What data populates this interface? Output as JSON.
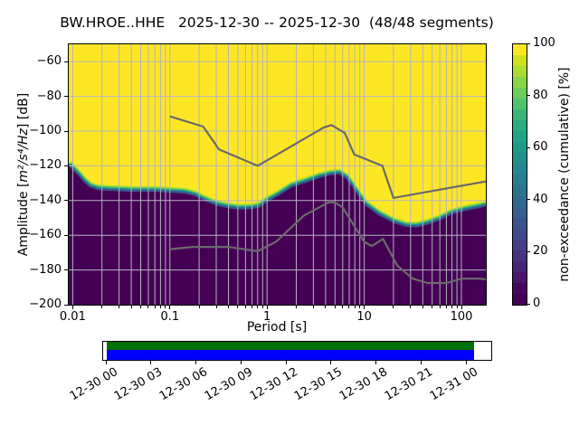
{
  "title": "BW.HROE..HHE   2025-12-30 -- 2025-12-30  (48/48 segments)",
  "axes": {
    "xlabel": "Period [s]",
    "ylabel": {
      "prefix": "Amplitude [",
      "math": "m²/s⁴/Hz",
      "suffix": "] [dB]"
    },
    "xticks": {
      "labels": [
        "0.01",
        "0.1",
        "1",
        "10",
        "100"
      ],
      "values": [
        0.01,
        0.1,
        1,
        10,
        100
      ]
    },
    "yticks": {
      "labels": [
        "−60",
        "−80",
        "−100",
        "−120",
        "−140",
        "−160",
        "−180",
        "−200"
      ],
      "values": [
        -60,
        -80,
        -100,
        -120,
        -140,
        -160,
        -180,
        -200
      ]
    }
  },
  "colorbar": {
    "label": "non-exceedance (cumulative) [%]",
    "ticks": {
      "labels": [
        "0",
        "20",
        "40",
        "60",
        "80",
        "100"
      ],
      "values": [
        0,
        20,
        40,
        60,
        80,
        100
      ]
    }
  },
  "timeline": {
    "labels": [
      "12-30 00",
      "12-30 03",
      "12-30 06",
      "12-30 09",
      "12-30 12",
      "12-30 15",
      "12-30 18",
      "12-30 21",
      "12-31 00"
    ]
  },
  "colors": {
    "yellow": "#fde725",
    "dark": "#440154",
    "grid": "#b3b3bd",
    "noise_line": "#6a6a6a",
    "band": [
      "#b5de2b",
      "#44bf70",
      "#21918c",
      "#39568c"
    ],
    "viridis": [
      "#440154",
      "#46085c",
      "#481769",
      "#472575",
      "#46327e",
      "#433e85",
      "#3f4a8a",
      "#3a548c",
      "#355f8d",
      "#30698e",
      "#2c738e",
      "#287d8e",
      "#24868e",
      "#21908d",
      "#1f998a",
      "#20a386",
      "#29ac7f",
      "#3bb577",
      "#50c46a",
      "#6ccd5a",
      "#89d548",
      "#aadc32",
      "#d0e11c",
      "#fde725"
    ],
    "timeline_green": "#007000",
    "timeline_blue": "#0000ff"
  },
  "chart_data": {
    "type": "heatmap",
    "title": "BW.HROE..HHE   2025-12-30 -- 2025-12-30  (48/48 segments)",
    "xlabel": "Period [s]",
    "ylabel": "Amplitude [m²/s⁴/Hz] [dB]",
    "colorbar_label": "non-exceedance (cumulative) [%]",
    "colorbar_range": [
      0,
      100
    ],
    "xscale": "log",
    "xlim": [
      0.0091,
      178.4
    ],
    "ylim": [
      -200,
      -50
    ],
    "grid": true,
    "segments_used": "48/48",
    "mode_curve": {
      "description": "boundary of cumulative PPSD distribution (dB vs period in s)",
      "periods": [
        0.0091,
        0.01,
        0.0115,
        0.013,
        0.015,
        0.018,
        0.025,
        0.04,
        0.07,
        0.1,
        0.14,
        0.18,
        0.22,
        0.3,
        0.4,
        0.5,
        0.7,
        0.85,
        1.0,
        1.3,
        1.8,
        2.6,
        3.5,
        4.5,
        5.5,
        6.5,
        8,
        10,
        14,
        20,
        27,
        35,
        45,
        60,
        80,
        110,
        150,
        178
      ],
      "db": [
        -118.5,
        -121,
        -124.5,
        -128,
        -131,
        -132.5,
        -133,
        -133.5,
        -133.5,
        -134,
        -134.5,
        -136,
        -138.5,
        -141.5,
        -143,
        -143.7,
        -143.5,
        -142.5,
        -139.5,
        -136,
        -131,
        -128,
        -125.5,
        -124,
        -123.5,
        -126,
        -133,
        -141,
        -147,
        -151.5,
        -153.8,
        -154,
        -152.5,
        -150,
        -146.5,
        -144.5,
        -143,
        -142
      ]
    },
    "noise_models": {
      "nhnm": {
        "periods": [
          0.1,
          0.22,
          0.32,
          0.8,
          3.8,
          4.6,
          6.3,
          7.9,
          15.4,
          20.0,
          178.0
        ],
        "db": [
          -91.5,
          -97.4,
          -110.5,
          -120.0,
          -98.0,
          -96.5,
          -101.0,
          -113.5,
          -120.0,
          -138.5,
          -129.0
        ]
      },
      "nlnm": {
        "periods": [
          0.1,
          0.17,
          0.4,
          0.8,
          1.24,
          2.4,
          4.3,
          5.0,
          6.0,
          10.0,
          12.0,
          15.6,
          21.9,
          31.6,
          45.0,
          70.0,
          101.0,
          154.0,
          178.0
        ],
        "db": [
          -168.0,
          -166.7,
          -166.7,
          -169.2,
          -163.7,
          -148.6,
          -141.1,
          -141.1,
          -144.0,
          -163.8,
          -166.2,
          -162.1,
          -177.5,
          -185.0,
          -187.5,
          -187.5,
          -185.0,
          -185.0,
          -185.4
        ]
      }
    },
    "coverage_timeline": {
      "tick_labels": [
        "12-30 00",
        "12-30 03",
        "12-30 06",
        "12-30 09",
        "12-30 12",
        "12-30 15",
        "12-30 18",
        "12-30 21",
        "12-31 00"
      ],
      "bar_colors": [
        "green",
        "blue"
      ]
    }
  }
}
